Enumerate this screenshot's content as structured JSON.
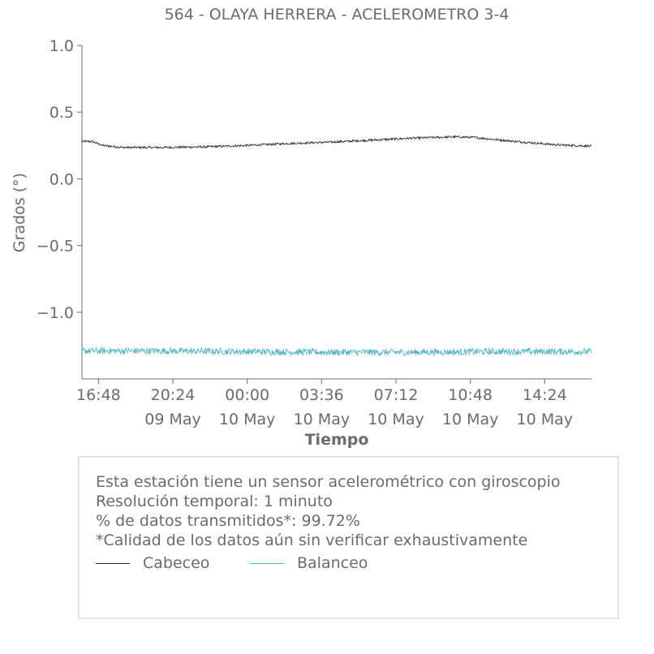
{
  "chart_data": {
    "type": "line",
    "title": "564 - OLAYA HERRERA - ACELEROMETRO 3-4",
    "xlabel": "Tiempo",
    "ylabel": "Grados (°)",
    "ylim": [
      -1.5,
      1.0
    ],
    "yticks": [
      1.0,
      0.5,
      0.0,
      -0.5,
      -1.0
    ],
    "ytick_labels": [
      "1.0",
      "0.5",
      "0.0",
      "−0.5",
      "−1.0"
    ],
    "xlim": [
      "2024-05-09T16:00",
      "2024-05-10T16:40"
    ],
    "xticks": [
      {
        "t": "2024-05-09T16:48",
        "time": "16:48",
        "date": ""
      },
      {
        "t": "2024-05-09T20:24",
        "time": "20:24",
        "date": "09 May"
      },
      {
        "t": "2024-05-10T00:00",
        "time": "00:00",
        "date": "10 May"
      },
      {
        "t": "2024-05-10T03:36",
        "time": "03:36",
        "date": "10 May"
      },
      {
        "t": "2024-05-10T07:12",
        "time": "07:12",
        "date": "10 May"
      },
      {
        "t": "2024-05-10T10:48",
        "time": "10:48",
        "date": "10 May"
      },
      {
        "t": "2024-05-10T14:24",
        "time": "14:24",
        "date": "10 May"
      }
    ],
    "series": [
      {
        "name": "Cabeceo",
        "color": "#2b2a4c",
        "noise": 0.008,
        "points": [
          [
            "2024-05-09T16:00",
            0.28
          ],
          [
            "2024-05-09T16:30",
            0.28
          ],
          [
            "2024-05-09T17:00",
            0.25
          ],
          [
            "2024-05-09T18:00",
            0.235
          ],
          [
            "2024-05-09T20:00",
            0.235
          ],
          [
            "2024-05-09T22:00",
            0.24
          ],
          [
            "2024-05-10T00:00",
            0.25
          ],
          [
            "2024-05-10T02:00",
            0.265
          ],
          [
            "2024-05-10T04:00",
            0.275
          ],
          [
            "2024-05-10T06:00",
            0.29
          ],
          [
            "2024-05-10T08:00",
            0.305
          ],
          [
            "2024-05-10T10:00",
            0.315
          ],
          [
            "2024-05-10T11:00",
            0.31
          ],
          [
            "2024-05-10T13:00",
            0.28
          ],
          [
            "2024-05-10T15:00",
            0.255
          ],
          [
            "2024-05-10T16:40",
            0.245
          ]
        ]
      },
      {
        "name": "Balanceo",
        "color": "#4db6bf",
        "noise": 0.025,
        "points": [
          [
            "2024-05-09T16:00",
            -1.29
          ],
          [
            "2024-05-09T20:00",
            -1.29
          ],
          [
            "2024-05-10T00:00",
            -1.295
          ],
          [
            "2024-05-10T04:00",
            -1.3
          ],
          [
            "2024-05-10T08:00",
            -1.3
          ],
          [
            "2024-05-10T12:00",
            -1.295
          ],
          [
            "2024-05-10T16:40",
            -1.295
          ]
        ]
      }
    ]
  },
  "info": {
    "line1": "Esta estación tiene un sensor acelerométrico con giroscopio",
    "line2": "Resolución temporal: 1 minuto",
    "line3": "% de datos transmitidos*: 99.72%",
    "line4": "*Calidad de los datos aún sin verificar exhaustivamente"
  }
}
